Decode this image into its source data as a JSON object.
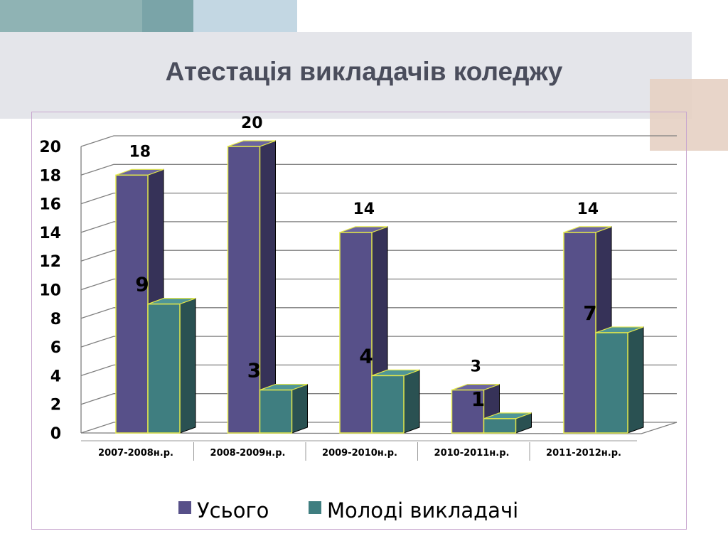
{
  "slide": {
    "title": "Атестація викладачів коледжу"
  },
  "colors": {
    "series_total_front": "#575089",
    "series_total_side": "#363258",
    "series_total_top": "#6a64a0",
    "series_young_front": "#3f7e80",
    "series_young_side": "#2a5152",
    "series_young_top": "#4f9597",
    "bar_edge": "#e4e84a",
    "gridline": "#7f7f7f",
    "frame": "#c8a6cf",
    "title_band": "#e4e5ea",
    "deco_teal": "#8fb3b4",
    "deco_teal_dark": "#7aa4a8",
    "deco_blue": "#c3d7e3",
    "deco_tan": "#e6d0c3"
  },
  "chart_data": {
    "type": "bar",
    "categories": [
      "2007-2008н.р.",
      "2008-2009н.р.",
      "2009-2010н.р.",
      "2010-2011н.р.",
      "2011-2012н.р."
    ],
    "series": [
      {
        "name": "Усього",
        "values": [
          18,
          20,
          14,
          3,
          14
        ]
      },
      {
        "name": "Молоді викладачі",
        "values": [
          9,
          3,
          4,
          1,
          7
        ]
      }
    ],
    "ylim": [
      0,
      20
    ],
    "yticks": [
      "0",
      "2",
      "4",
      "6",
      "8",
      "10",
      "12",
      "14",
      "16",
      "18",
      "20"
    ],
    "grid": true,
    "three_d": true,
    "legend_position": "bottom"
  }
}
